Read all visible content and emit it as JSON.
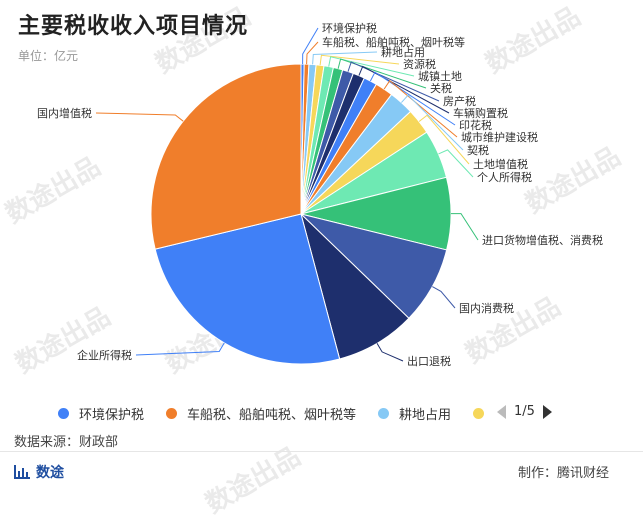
{
  "title": "主要税收收入项目情况",
  "unit": "单位：亿元",
  "source": "数据来源：财政部",
  "credit": "制作：腾讯财经",
  "brand": "数途",
  "watermark": "数途出品",
  "pager": "1/5",
  "chart_data": {
    "type": "pie",
    "title": "主要税收收入项目情况",
    "unit": "亿元",
    "legend_position": "bottom",
    "slices": [
      {
        "name": "环境保护税",
        "value": 0.4,
        "color": "#4080f7"
      },
      {
        "name": "车船税、船舶吨税、烟叶税等",
        "value": 0.6,
        "color": "#f07e2b"
      },
      {
        "name": "耕地占用",
        "value": 0.9,
        "color": "#86c9f5"
      },
      {
        "name": "资源税",
        "value": 1.0,
        "color": "#f6d75a"
      },
      {
        "name": "城镇土地",
        "value": 1.2,
        "color": "#6ee9b3"
      },
      {
        "name": "关税",
        "value": 1.2,
        "color": "#35c178"
      },
      {
        "name": "房产税",
        "value": 1.4,
        "color": "#3e5aa8"
      },
      {
        "name": "车辆购置税",
        "value": 1.5,
        "color": "#1e2f6d"
      },
      {
        "name": "印花税",
        "value": 1.7,
        "color": "#4080f7"
      },
      {
        "name": "城市维护建设税",
        "value": 2.3,
        "color": "#f07e2b"
      },
      {
        "name": "契税",
        "value": 3.2,
        "color": "#86c9f5"
      },
      {
        "name": "土地增值税",
        "value": 3.3,
        "color": "#f6d75a"
      },
      {
        "name": "个人所得税",
        "value": 6.2,
        "color": "#6ee9b3"
      },
      {
        "name": "进口货物增值税、消费税",
        "value": 9.2,
        "color": "#35c178"
      },
      {
        "name": "国内消费税",
        "value": 9.9,
        "color": "#3e5aa8"
      },
      {
        "name": "出口退税",
        "value": 10.2,
        "color": "#1e2f6d"
      },
      {
        "name": "企业所得税",
        "value": 30.0,
        "color": "#4080f7"
      },
      {
        "name": "国内增值税",
        "value": 34.0,
        "color": "#f07e2b"
      }
    ],
    "legend_visible": [
      {
        "name": "环境保护税",
        "color": "#4080f7"
      },
      {
        "name": "车船税、船舶吨税、烟叶税等",
        "color": "#f07e2b"
      },
      {
        "name": "耕地占用",
        "color": "#86c9f5"
      },
      {
        "name": "",
        "color": "#f6d75a"
      }
    ]
  }
}
